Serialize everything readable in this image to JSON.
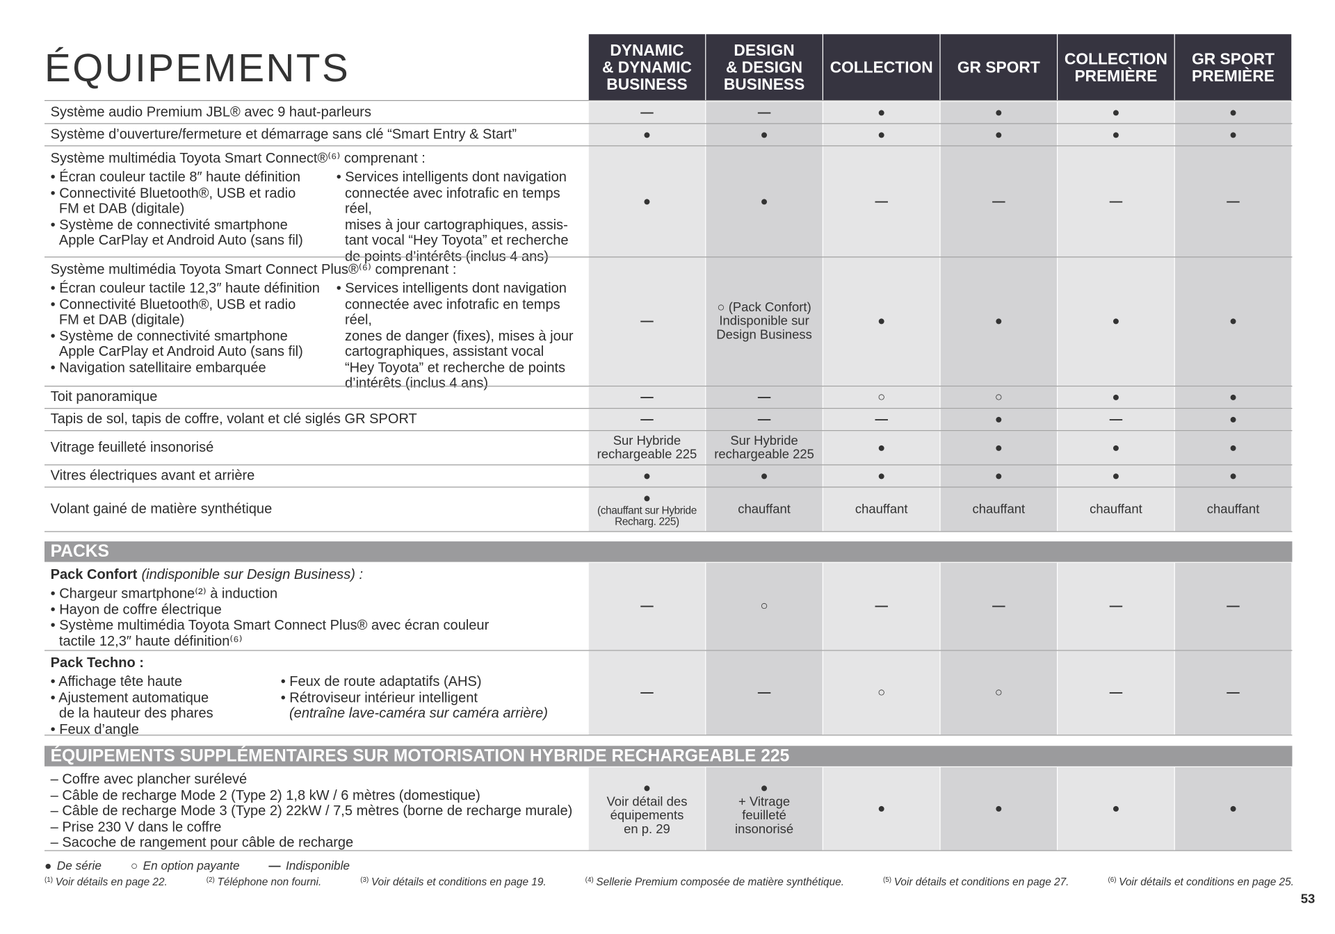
{
  "header": {
    "title": "ÉQUIPEMENTS",
    "columns": [
      [
        "DYNAMIC",
        "& DYNAMIC",
        "BUSINESS"
      ],
      [
        "DESIGN",
        "& DESIGN",
        "BUSINESS"
      ],
      [
        "COLLECTION"
      ],
      [
        "GR SPORT"
      ],
      [
        "COLLECTION",
        "PREMIÈRE"
      ],
      [
        "GR SPORT",
        "PREMIÈRE"
      ]
    ]
  },
  "sections": [
    {
      "rows": [
        {
          "label": "Système audio Premium JBL® avec 9 haut-parleurs",
          "cells": [
            "—",
            "—",
            "●",
            "●",
            "●",
            "●"
          ]
        },
        {
          "label": "Système d’ouverture/fermeture et démarrage sans clé “Smart Entry & Start”",
          "cells": [
            "●",
            "●",
            "●",
            "●",
            "●",
            "●"
          ]
        },
        {
          "intro": "Système multimédia Toyota Smart Connect®⁽⁶⁾ comprenant :",
          "left": [
            "• Écran couleur tactile 8″ haute définition",
            "• Connectivité Bluetooth®, USB et radio",
            "FM et DAB (digitale)",
            "• Système de connectivité smartphone",
            "Apple CarPlay et Android Auto (sans fil)"
          ],
          "right": [
            "• Services intelligents dont navigation",
            "connectée avec infotrafic en temps réel,",
            "mises à jour cartographiques, assis-",
            "tant vocal “Hey Toyota” et recherche",
            "de points d’intérêts (inclus 4 ans)"
          ],
          "cells": [
            "●",
            "●",
            "—",
            "—",
            "—",
            "—"
          ]
        },
        {
          "intro": "Système multimédia Toyota Smart Connect Plus®⁽⁶⁾ comprenant :",
          "left": [
            "• Écran couleur tactile 12,3″ haute définition",
            "• Connectivité Bluetooth®, USB et radio",
            "FM et DAB (digitale)",
            "• Système de connectivité smartphone",
            "Apple CarPlay et Android Auto (sans fil)",
            "• Navigation satellitaire embarquée"
          ],
          "right": [
            "• Services intelligents dont navigation",
            "connectée avec infotrafic en temps réel,",
            "zones de danger (fixes), mises à jour",
            "cartographiques, assistant vocal",
            "“Hey Toyota” et recherche de points",
            "d’intérêts (inclus 4 ans)"
          ],
          "cells": [
            "—",
            [
              "○ (Pack Confort)",
              "Indisponible sur",
              "Design Business"
            ],
            "●",
            "●",
            "●",
            "●"
          ]
        },
        {
          "label": "Toit panoramique",
          "cells": [
            "—",
            "—",
            "○",
            "○",
            "●",
            "●"
          ]
        },
        {
          "label": "Tapis de sol, tapis de coffre, volant et clé siglés GR SPORT",
          "cells": [
            "—",
            "—",
            "—",
            "●",
            "—",
            "●"
          ]
        },
        {
          "label": "Vitrage feuilleté insonorisé",
          "cells": [
            [
              "Sur Hybride",
              "rechargeable 225"
            ],
            [
              "Sur Hybride",
              "rechargeable 225"
            ],
            "●",
            "●",
            "●",
            "●"
          ]
        },
        {
          "label": "Vitres électriques avant et arrière",
          "cells": [
            "●",
            "●",
            "●",
            "●",
            "●",
            "●"
          ]
        },
        {
          "label": "Volant gainé de matière synthétique",
          "cells": [
            [
              "●",
              "(chauffant sur Hybride",
              "Recharg. 225)"
            ],
            "chauffant",
            "chauffant",
            "chauffant",
            "chauffant",
            "chauffant"
          ]
        }
      ]
    },
    {
      "title": "PACKS",
      "rows": [
        {
          "intro": "Pack Confort",
          "note": "(indisponible sur Design Business) :",
          "left": [
            "• Chargeur smartphone⁽²⁾ à induction",
            "• Hayon de coffre électrique",
            "• Système multimédia Toyota Smart Connect Plus® avec écran couleur",
            "tactile 12,3″ haute définition⁽⁶⁾"
          ],
          "cells": [
            "—",
            "○",
            "—",
            "—",
            "—",
            "—"
          ]
        },
        {
          "intro": "Pack Techno :",
          "left": [
            "• Affichage tête haute",
            "• Ajustement automatique",
            "de la hauteur des phares",
            "• Feux d’angle"
          ],
          "right": [
            "• Feux de route adaptatifs (AHS)",
            "• Rétroviseur intérieur intelligent",
            "(entraîne lave-caméra sur caméra arrière)"
          ],
          "cells": [
            "—",
            "—",
            "○",
            "○",
            "—",
            "—"
          ]
        }
      ]
    },
    {
      "title": "ÉQUIPEMENTS SUPPLÉMENTAIRES SUR MOTORISATION HYBRIDE RECHARGEABLE 225",
      "rows": [
        {
          "left": [
            "– Coffre avec plancher surélevé",
            "– Câble de recharge Mode 2 (Type 2) 1,8 kW / 6 mètres (domestique)",
            "– Câble de recharge Mode 3 (Type 2) 22kW / 7,5 mètres (borne de recharge murale)",
            "– Prise 230 V dans le coffre",
            "– Sacoche de rangement pour câble de recharge"
          ],
          "cells": [
            [
              "●",
              "Voir détail des",
              "équipements",
              "en p. 29"
            ],
            [
              "●",
              "+ Vitrage",
              "feuilleté",
              "insonorisé"
            ],
            "●",
            "●",
            "●",
            "●"
          ]
        }
      ]
    }
  ],
  "legend": [
    {
      "symbol": "●",
      "text": "De série"
    },
    {
      "symbol": "○",
      "text": "En option payante"
    },
    {
      "symbol": "—",
      "text": "Indisponible"
    }
  ],
  "footnotes": [
    {
      "n": "(1)",
      "text": "Voir détails en page 22."
    },
    {
      "n": "(2)",
      "text": "Téléphone non fourni."
    },
    {
      "n": "(3)",
      "text": "Voir détails et conditions en page 19."
    },
    {
      "n": "(4)",
      "text": "Sellerie Premium composée de matière synthétique."
    },
    {
      "n": "(5)",
      "text": "Voir détails et conditions en page 27."
    },
    {
      "n": "(6)",
      "text": "Voir détails et conditions en page 25."
    }
  ],
  "page_number": "53"
}
